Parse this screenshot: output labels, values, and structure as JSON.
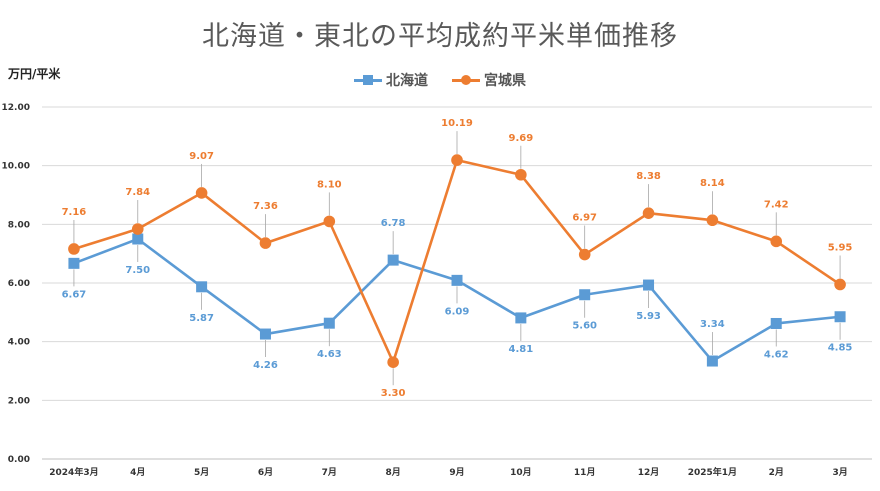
{
  "chart_data": {
    "type": "line",
    "title": "北海道・東北の平均成約平米単価推移",
    "ylabel": "万円/平米",
    "categories": [
      "2024年3月",
      "4月",
      "5月",
      "6月",
      "7月",
      "8月",
      "9月",
      "10月",
      "11月",
      "12月",
      "2025年1月",
      "2月",
      "3月"
    ],
    "ylim": [
      0,
      12
    ],
    "yticks": [
      "0.00",
      "2.00",
      "4.00",
      "6.00",
      "8.00",
      "10.00",
      "12.00"
    ],
    "grid": true,
    "legend_position": "top",
    "series": [
      {
        "name": "北海道",
        "marker": "square",
        "color": "#5b9bd5",
        "values": [
          6.67,
          7.5,
          5.87,
          4.26,
          4.63,
          6.78,
          6.09,
          4.81,
          5.6,
          5.93,
          3.34,
          4.62,
          4.85
        ]
      },
      {
        "name": "宮城県",
        "marker": "circle",
        "color": "#ed7d31",
        "values": [
          7.16,
          7.84,
          9.07,
          7.36,
          8.1,
          3.3,
          10.19,
          9.69,
          6.97,
          8.38,
          8.14,
          7.42,
          5.95
        ]
      }
    ]
  }
}
